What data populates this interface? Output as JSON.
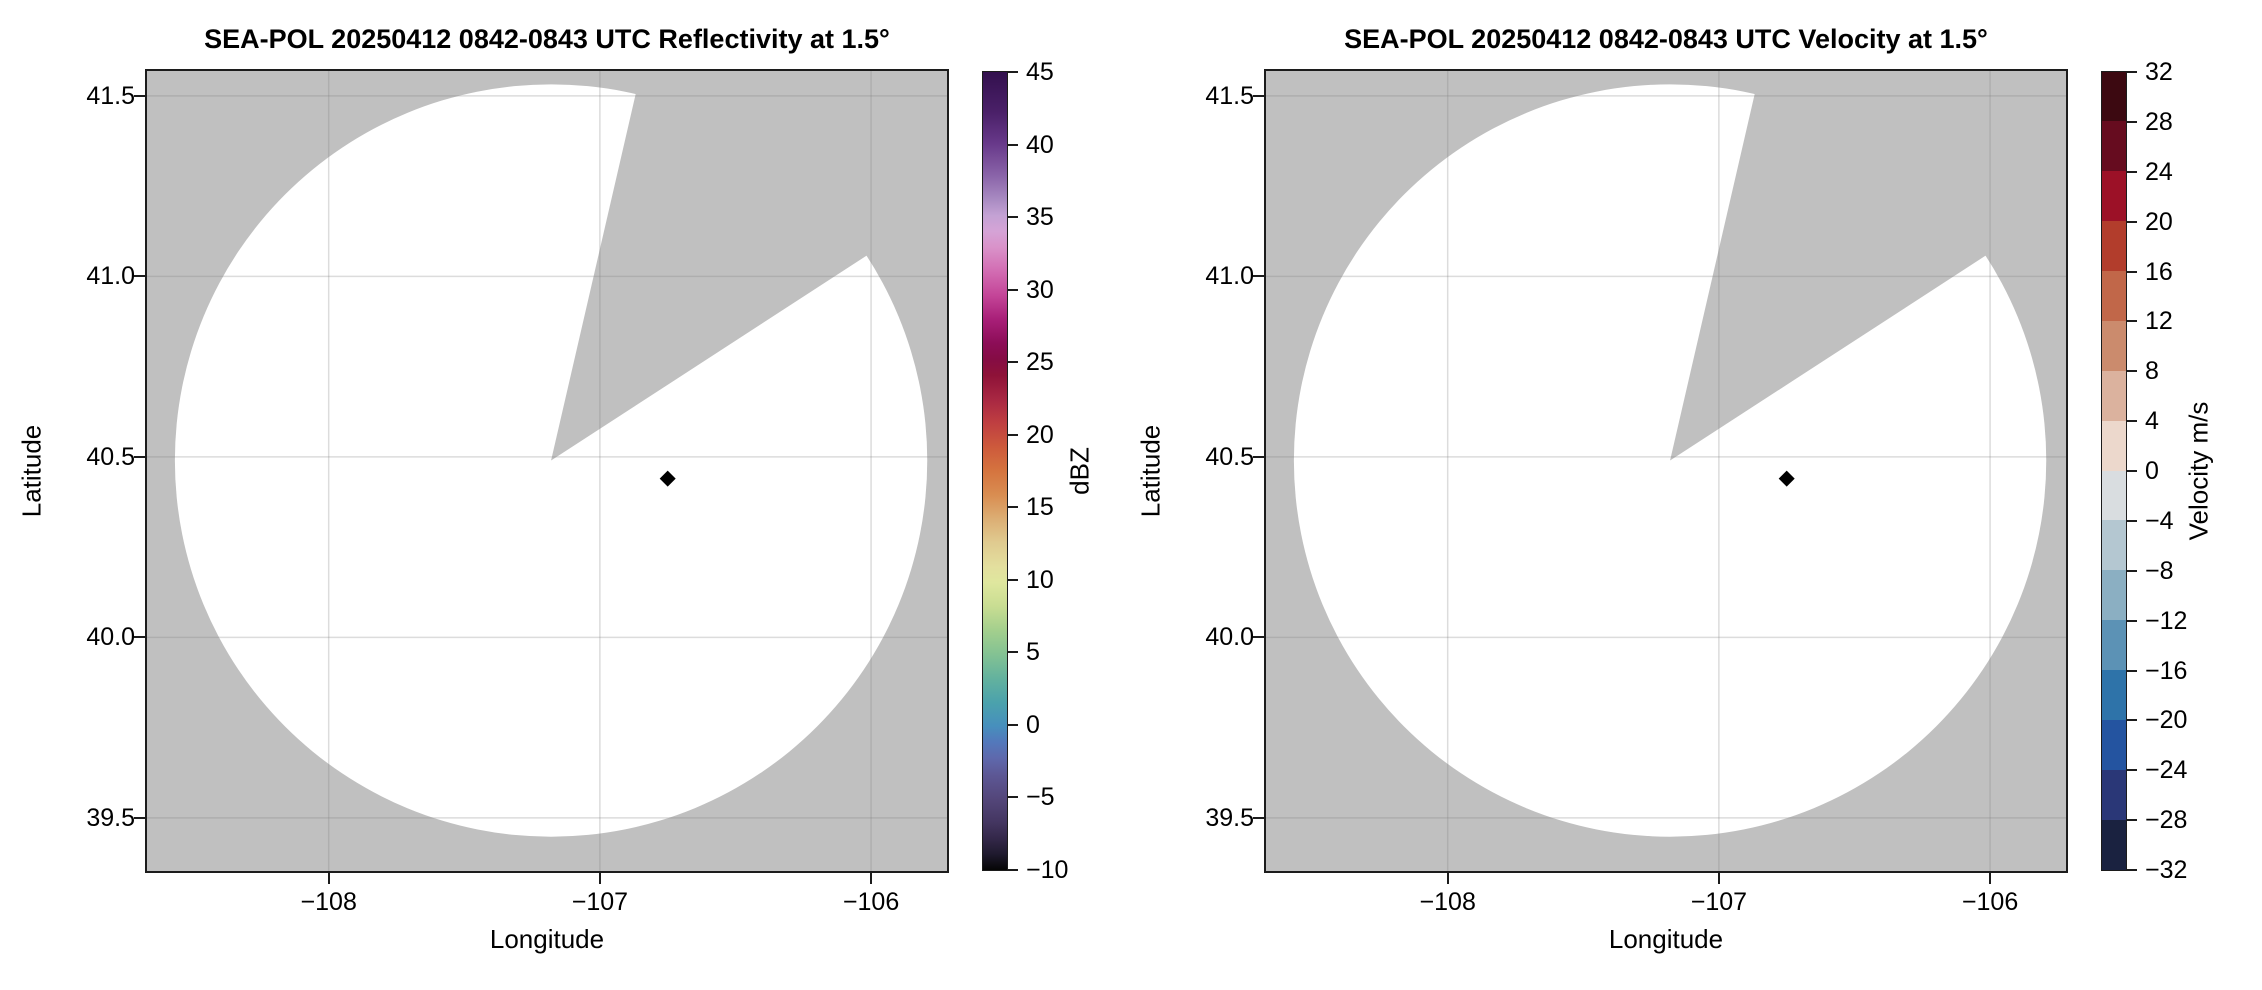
{
  "axes": {
    "xlim": [
      -108.67,
      -105.72
    ],
    "ylim": [
      39.353,
      41.569
    ],
    "xtick_values": [
      -108,
      -107,
      -106
    ],
    "xtick_labels": [
      "−108",
      "−107",
      "−106"
    ],
    "ytick_values": [
      41.5,
      41.0,
      40.5,
      40.0,
      39.5
    ],
    "ytick_labels": [
      "41.5",
      "41.0",
      "40.5",
      "40.0",
      "39.5"
    ],
    "grid_color": "rgba(130,130,130,0.28)",
    "no_data_color": "#c0c0c0",
    "coverage_color": "#ffffff"
  },
  "radar": {
    "center_lon": -107.18,
    "center_lat": 40.49,
    "range_lat_deg": 1.042,
    "blocked_sector_azimuth_deg": [
      13,
      57
    ],
    "points": [
      {
        "lon": -106.75,
        "lat": 40.44,
        "color": "#000000",
        "marker": "diamond"
      }
    ]
  },
  "panels": [
    {
      "title": "SEA-POL 20250412 0842-0843 UTC Reflectivity at 1.5°",
      "xlabel": "Longitude",
      "ylabel": "Latitude",
      "colorbar": {
        "label": "dBZ",
        "type": "gradient",
        "vmin": -10,
        "vmax": 45,
        "tick_values": [
          45,
          40,
          35,
          30,
          25,
          20,
          15,
          10,
          5,
          0,
          -5,
          -10
        ],
        "tick_labels": [
          "45",
          "40",
          "35",
          "30",
          "25",
          "20",
          "15",
          "10",
          "5",
          "0",
          "−5",
          "−10"
        ],
        "gradient_stops": [
          [
            0,
            "#33104e"
          ],
          [
            5,
            "#4a2068"
          ],
          [
            9,
            "#68398a"
          ],
          [
            13,
            "#8a64a9"
          ],
          [
            16,
            "#a98bc2"
          ],
          [
            18,
            "#c4a2d4"
          ],
          [
            20,
            "#d5a3d6"
          ],
          [
            22,
            "#d992c9"
          ],
          [
            25,
            "#d26cb2"
          ],
          [
            28,
            "#c44598"
          ],
          [
            31,
            "#a81f78"
          ],
          [
            34,
            "#8c0d57"
          ],
          [
            36,
            "#850c44"
          ],
          [
            38,
            "#8e1238"
          ],
          [
            41,
            "#a82742"
          ],
          [
            44,
            "#bf3f41"
          ],
          [
            47,
            "#cd5a3c"
          ],
          [
            50,
            "#d5743f"
          ],
          [
            53,
            "#d98d51"
          ],
          [
            56,
            "#dcae74"
          ],
          [
            59,
            "#e0cb90"
          ],
          [
            62,
            "#e3df9e"
          ],
          [
            64,
            "#dfe79e"
          ],
          [
            67,
            "#c8dd92"
          ],
          [
            70,
            "#a3cf8d"
          ],
          [
            73,
            "#83c293"
          ],
          [
            76,
            "#63b29e"
          ],
          [
            79,
            "#4ba2ac"
          ],
          [
            82,
            "#478fbd"
          ],
          [
            84,
            "#5378bb"
          ],
          [
            86,
            "#5e68ac"
          ],
          [
            88,
            "#5d5896"
          ],
          [
            91,
            "#54477b"
          ],
          [
            94,
            "#443661"
          ],
          [
            96,
            "#34284a"
          ],
          [
            98,
            "#1f1a2e"
          ],
          [
            100,
            "#050505"
          ]
        ]
      }
    },
    {
      "title": "SEA-POL 20250412 0842-0843 UTC Velocity at 1.5°",
      "xlabel": "Longitude",
      "ylabel": "Latitude",
      "colorbar": {
        "label": "Velocity m/s",
        "type": "segments",
        "vmin": -32,
        "vmax": 32,
        "tick_values": [
          32,
          28,
          24,
          20,
          16,
          12,
          8,
          4,
          0,
          -4,
          -8,
          -12,
          -16,
          -20,
          -24,
          -28,
          -32
        ],
        "tick_labels": [
          "32",
          "28",
          "24",
          "20",
          "16",
          "12",
          "8",
          "4",
          "0",
          "−4",
          "−8",
          "−12",
          "−16",
          "−20",
          "−24",
          "−28",
          "−32"
        ],
        "segment_colors": [
          "#3c0911",
          "#660c1f",
          "#9c1127",
          "#b23d2c",
          "#c16749",
          "#cb8b6d",
          "#dbb29e",
          "#ecd8cc",
          "#d9dde0",
          "#b4c7d1",
          "#8bafc2",
          "#5c92b5",
          "#2e73a9",
          "#2454a0",
          "#2a3777",
          "#1a2240"
        ]
      }
    }
  ],
  "chart_data": [
    {
      "type": "heatmap",
      "subtype": "radar_ppi_scan",
      "title": "SEA-POL 20250412 0842-0843 UTC Reflectivity at 1.5°",
      "xlabel": "Longitude",
      "ylabel": "Latitude",
      "xlim": [
        -108.67,
        -105.72
      ],
      "ylim": [
        39.35,
        41.57
      ],
      "xticks": [
        -108,
        -107,
        -106
      ],
      "yticks": [
        41.5,
        41.0,
        40.5,
        40.0,
        39.5
      ],
      "grid": true,
      "colorbar_label": "dBZ",
      "colorbar_range": [
        -10,
        45
      ],
      "colorbar_ticks": [
        45,
        40,
        35,
        30,
        25,
        20,
        15,
        10,
        5,
        0,
        -5,
        -10
      ],
      "radar_center": {
        "lon": -107.18,
        "lat": 40.49
      },
      "coverage_radius_deg_lat": 1.04,
      "blocked_sector_azimuth_deg": [
        13,
        57
      ],
      "field_description": "Coverage circle is empty (no echoes, white); area outside coverage and blocked sector are gray",
      "data_points": [
        {
          "lon": -106.75,
          "lat": 40.44,
          "value_dBZ": -10,
          "appearance": "black diamond"
        }
      ]
    },
    {
      "type": "heatmap",
      "subtype": "radar_ppi_scan",
      "title": "SEA-POL 20250412 0842-0843 UTC Velocity at 1.5°",
      "xlabel": "Longitude",
      "ylabel": "Latitude",
      "xlim": [
        -108.67,
        -105.72
      ],
      "ylim": [
        39.35,
        41.57
      ],
      "xticks": [
        -108,
        -107,
        -106
      ],
      "yticks": [
        41.5,
        41.0,
        40.5,
        40.0,
        39.5
      ],
      "grid": true,
      "colorbar_label": "Velocity m/s",
      "colorbar_range": [
        -32,
        32
      ],
      "colorbar_ticks": [
        32,
        28,
        24,
        20,
        16,
        12,
        8,
        4,
        0,
        -4,
        -8,
        -12,
        -16,
        -20,
        -24,
        -28,
        -32
      ],
      "radar_center": {
        "lon": -107.18,
        "lat": 40.49
      },
      "coverage_radius_deg_lat": 1.04,
      "blocked_sector_azimuth_deg": [
        13,
        57
      ],
      "field_description": "Coverage circle is empty (no echoes, white); area outside coverage and blocked sector are gray",
      "data_points": [
        {
          "lon": -106.75,
          "lat": 40.44,
          "value_m_s": -32,
          "appearance": "black diamond"
        }
      ]
    }
  ]
}
